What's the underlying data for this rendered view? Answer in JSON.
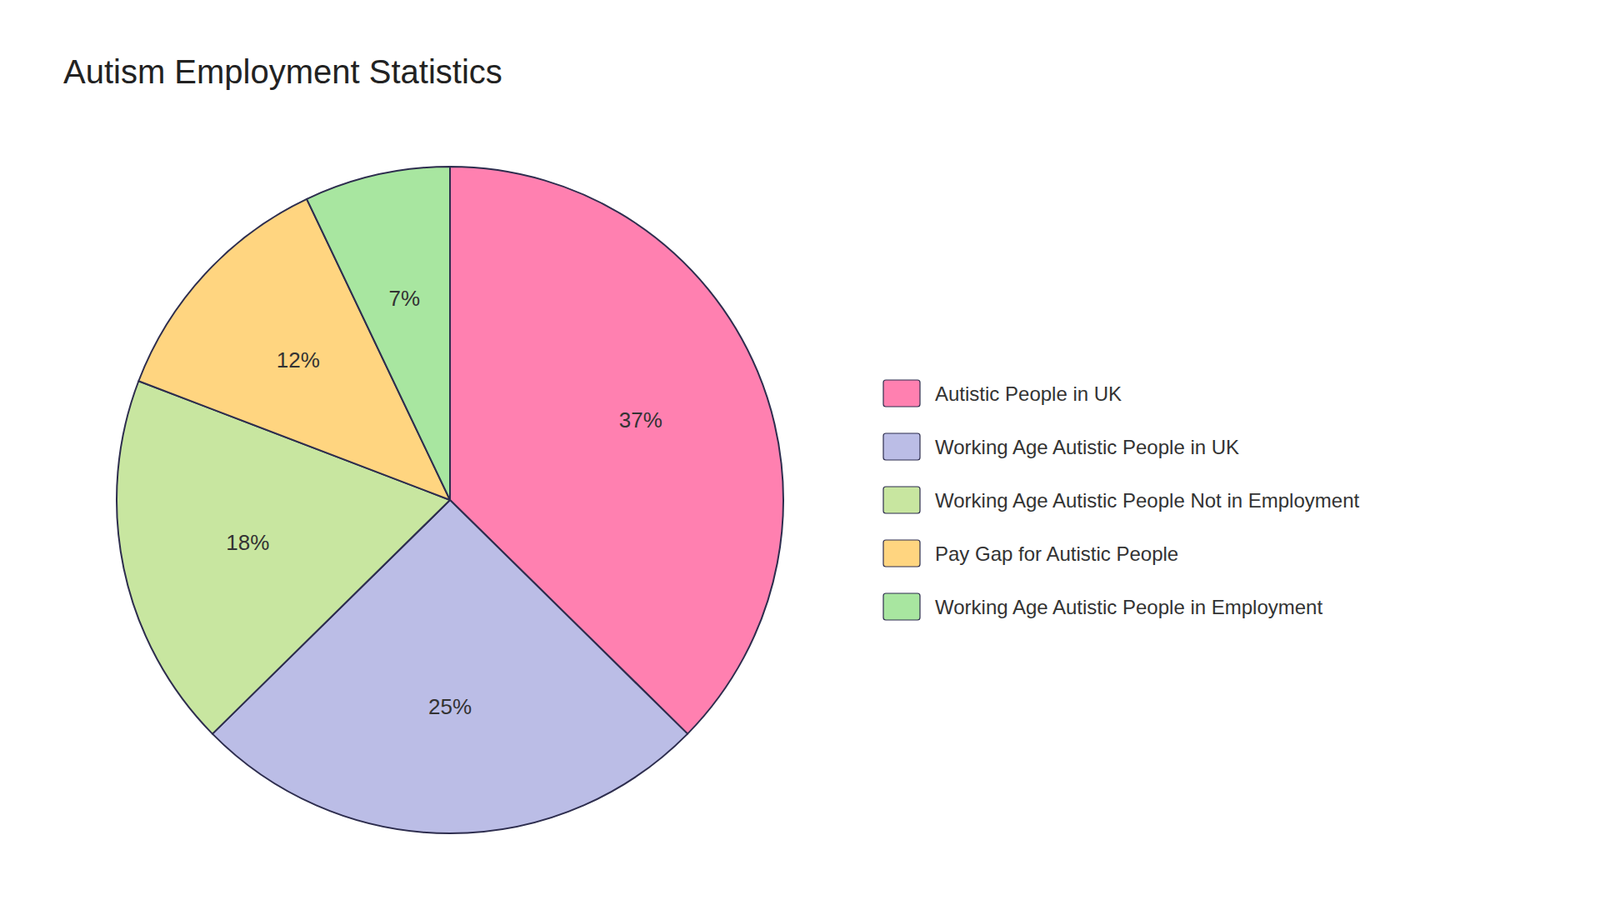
{
  "chart_data": {
    "type": "pie",
    "title": "Autism Employment Statistics",
    "categories": [
      "Autistic People in UK",
      "Working Age Autistic People in UK",
      "Working Age Autistic People Not in Employment",
      "Pay Gap for Autistic People",
      "Working Age Autistic People in Employment"
    ],
    "values": [
      37,
      25,
      18,
      12,
      7
    ],
    "value_labels": [
      "37%",
      "25%",
      "18%",
      "12%",
      "7%"
    ],
    "colors": [
      "#FF80B0",
      "#BBBDE6",
      "#C8E6A0",
      "#FFD580",
      "#A8E6A0"
    ],
    "data_labels": true,
    "legend": "right"
  }
}
